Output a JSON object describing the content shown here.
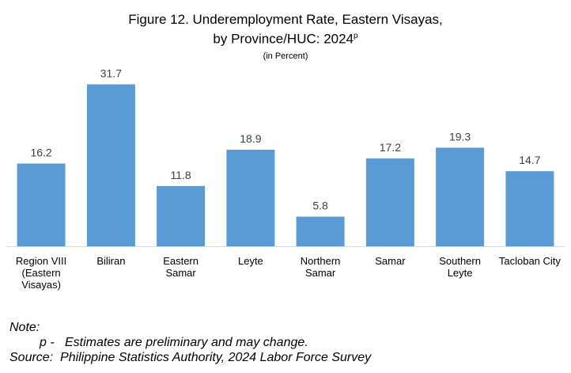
{
  "chart_data": {
    "type": "bar",
    "title_line1": "Figure 12. Underemployment Rate, Eastern Visayas,",
    "title_line2": "by Province/HUC: 2024",
    "title_superscript": "p",
    "subtitle": "(in Percent)",
    "categories": [
      [
        "Region VIII",
        "(Eastern",
        "Visayas)"
      ],
      [
        "Biliran"
      ],
      [
        "Eastern",
        "Samar"
      ],
      [
        "Leyte"
      ],
      [
        "Northern",
        "Samar"
      ],
      [
        "Samar"
      ],
      [
        "Southern",
        "Leyte"
      ],
      [
        "Tacloban City"
      ]
    ],
    "values": [
      16.2,
      31.7,
      11.8,
      18.9,
      5.8,
      17.2,
      19.3,
      14.7
    ],
    "value_labels": [
      "16.2",
      "31.7",
      "11.8",
      "18.9",
      "5.8",
      "17.2",
      "19.3",
      "14.7"
    ],
    "bar_color": "#5B9BD5",
    "ylim": [
      0,
      35
    ],
    "grid": false
  },
  "notes": {
    "note_label": "Note:",
    "p_line": "p -   Estimates are preliminary and may change.",
    "source_line": "Source:  Philippine Statistics Authority, 2024 Labor Force Survey"
  }
}
